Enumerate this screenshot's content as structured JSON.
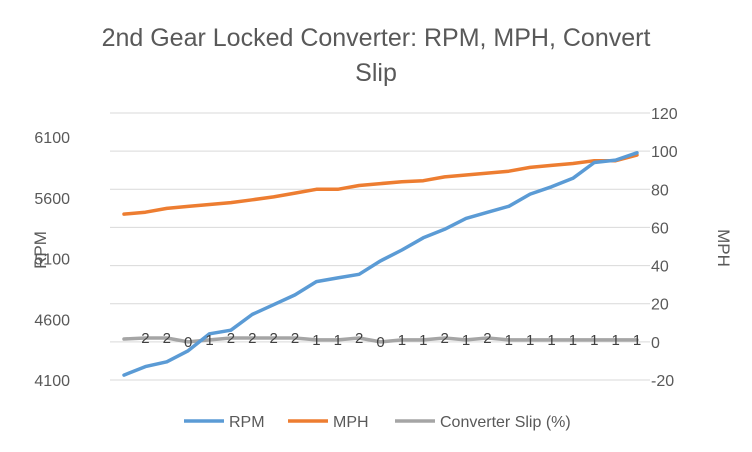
{
  "chart_data": {
    "type": "line",
    "title_lines": [
      "2nd Gear Locked Converter: RPM, MPH, Convert",
      "Slip"
    ],
    "y_left": {
      "label": "RPM",
      "range": [
        4100,
        6100
      ],
      "ticks": [
        4100,
        4600,
        5100,
        5600,
        6100
      ]
    },
    "y_right": {
      "label": "MPH",
      "range": [
        -20,
        120
      ],
      "ticks": [
        -20,
        0,
        20,
        40,
        60,
        80,
        100,
        120
      ]
    },
    "gridlines": "horizontal",
    "legend_position": "bottom",
    "colors": {
      "RPM": "#5b9bd5",
      "MPH": "#ed7d31",
      "Converter Slip (%)": "#a5a5a5"
    },
    "series": [
      {
        "name": "RPM",
        "axis": "left",
        "values": [
          4140,
          4210,
          4250,
          4340,
          4480,
          4510,
          4640,
          4720,
          4800,
          4910,
          4940,
          4970,
          5080,
          5170,
          5270,
          5340,
          5430,
          5480,
          5530,
          5630,
          5690,
          5760,
          5890,
          5910,
          5970
        ]
      },
      {
        "name": "MPH",
        "axis": "right",
        "values": [
          67,
          68,
          70,
          71,
          72,
          73,
          74.5,
          76,
          78,
          80,
          80,
          82,
          83,
          84,
          84.5,
          86.5,
          87.5,
          88.5,
          89.5,
          91.5,
          92.5,
          93.5,
          95,
          95,
          98
        ]
      },
      {
        "name": "Converter Slip (%)",
        "axis": "right",
        "values": [
          1.5,
          2,
          2,
          0,
          1,
          2,
          2,
          2,
          2,
          1,
          1,
          2,
          0,
          1,
          1,
          2,
          1,
          2,
          1,
          1,
          1,
          1,
          1,
          1,
          1
        ],
        "data_labels": [
          "",
          "2",
          "2",
          "0",
          "1",
          "2",
          "2",
          "2",
          "2",
          "1",
          "1",
          "2",
          "0",
          "1",
          "1",
          "2",
          "1",
          "2",
          "1",
          "1",
          "1",
          "1",
          "1",
          "1",
          "1"
        ]
      }
    ]
  }
}
